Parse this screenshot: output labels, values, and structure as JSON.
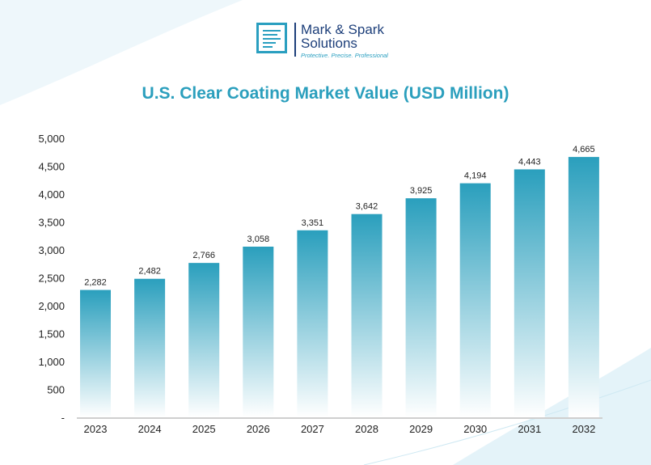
{
  "logo": {
    "line1": "Mark & Spark",
    "line2": "Solutions",
    "tagline": "Protective. Precise. Professional"
  },
  "chart_data": {
    "type": "bar",
    "title": "U.S. Clear Coating Market Value (USD Million)",
    "categories": [
      "2023",
      "2024",
      "2025",
      "2026",
      "2027",
      "2028",
      "2029",
      "2030",
      "2031",
      "2032"
    ],
    "values": [
      2282,
      2482,
      2766,
      3058,
      3351,
      3642,
      3925,
      4194,
      4443,
      4665
    ],
    "data_labels": [
      "2,282",
      "2,482",
      "2,766",
      "3,058",
      "3,351",
      "3,642",
      "3,925",
      "4,194",
      "4,443",
      "4,665"
    ],
    "ylim": [
      0,
      5000
    ],
    "yticks": [
      0,
      500,
      1000,
      1500,
      2000,
      2500,
      3000,
      3500,
      4000,
      4500,
      5000
    ],
    "ytick_labels": [
      "-",
      "500",
      "1,000",
      "1,500",
      "2,000",
      "2,500",
      "3,000",
      "3,500",
      "4,000",
      "4,500",
      "5,000"
    ],
    "grid": false,
    "bar_color_top": "#2a9fbd",
    "bar_color_bottom": "#ffffff",
    "title_color": "#2b9fbd"
  }
}
